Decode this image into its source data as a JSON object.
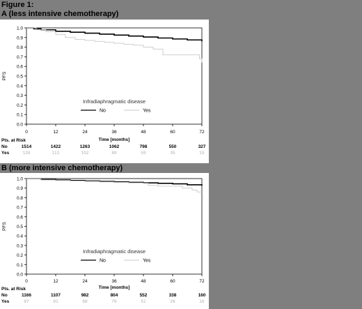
{
  "figure_title": "Figure 1:",
  "chart_data": [
    {
      "type": "line",
      "title": "A (less intensive chemotherapy)",
      "xlabel": "Time [months]",
      "ylabel": "PFS",
      "xlim": [
        0,
        72
      ],
      "ylim": [
        0.0,
        1.0
      ],
      "xticks": [
        0,
        12,
        24,
        36,
        48,
        60,
        72
      ],
      "yticks": [
        "0.0",
        "0.1",
        "0.2",
        "0.3",
        "0.4",
        "0.5",
        "0.6",
        "0.7",
        "0.8",
        "0.9",
        "1.0"
      ],
      "grid": false,
      "legend_title": "Infradiaphragmatic disease",
      "legend_position": "bottom-center",
      "series": [
        {
          "name": "No",
          "color": "#000000",
          "x": [
            0,
            3,
            6,
            12,
            18,
            24,
            30,
            36,
            42,
            48,
            54,
            60,
            66,
            72
          ],
          "y": [
            1.0,
            0.99,
            0.98,
            0.965,
            0.955,
            0.945,
            0.935,
            0.925,
            0.915,
            0.905,
            0.895,
            0.885,
            0.875,
            0.86
          ]
        },
        {
          "name": "Yes",
          "color": "#c8c8c8",
          "x": [
            0,
            4,
            8,
            12,
            16,
            20,
            24,
            28,
            32,
            36,
            40,
            44,
            48,
            52,
            56,
            60,
            64,
            68,
            70,
            71,
            72
          ],
          "y": [
            1.0,
            0.98,
            0.96,
            0.93,
            0.9,
            0.88,
            0.87,
            0.86,
            0.85,
            0.84,
            0.83,
            0.82,
            0.8,
            0.78,
            0.72,
            0.72,
            0.72,
            0.72,
            0.72,
            0.68,
            0.64
          ]
        }
      ],
      "risk_table": {
        "header": "Pts. at Risk",
        "rows": [
          {
            "label": "No",
            "color": "#000000",
            "values": [
              "1514",
              "1422",
              "1263",
              "1062",
              "798",
              "550",
              "327"
            ]
          },
          {
            "label": "Yes",
            "color": "#c8c8c8",
            "values": [
              "126",
              "113",
              "102",
              "89",
              "59",
              "35",
              "15"
            ]
          }
        ]
      }
    },
    {
      "type": "line",
      "title": "B (more intensive chemotherapy)",
      "xlabel": "Time [months]",
      "ylabel": "PFS",
      "xlim": [
        0,
        72
      ],
      "ylim": [
        0.0,
        1.0
      ],
      "xticks": [
        0,
        12,
        24,
        36,
        48,
        60,
        72
      ],
      "yticks": [
        "0.0",
        "0.1",
        "0.2",
        "0.3",
        "0.4",
        "0.5",
        "0.6",
        "0.7",
        "0.8",
        "0.9",
        "1.0"
      ],
      "grid": false,
      "legend_title": "Infradiaphragmatic disease",
      "legend_position": "bottom-center",
      "series": [
        {
          "name": "No",
          "color": "#000000",
          "x": [
            0,
            6,
            12,
            18,
            24,
            30,
            36,
            42,
            48,
            54,
            60,
            66,
            72
          ],
          "y": [
            1.0,
            0.99,
            0.985,
            0.98,
            0.975,
            0.97,
            0.965,
            0.96,
            0.955,
            0.95,
            0.945,
            0.935,
            0.925
          ]
        },
        {
          "name": "Yes",
          "color": "#c8c8c8",
          "x": [
            0,
            6,
            12,
            18,
            24,
            30,
            36,
            42,
            48,
            50,
            54,
            60,
            64,
            66,
            68,
            70,
            72
          ],
          "y": [
            1.0,
            0.985,
            0.98,
            0.975,
            0.97,
            0.965,
            0.96,
            0.955,
            0.95,
            0.93,
            0.92,
            0.92,
            0.9,
            0.9,
            0.88,
            0.86,
            0.86
          ]
        }
      ],
      "risk_table": {
        "header": "Pts. at Risk",
        "rows": [
          {
            "label": "No",
            "color": "#000000",
            "values": [
              "1166",
              "1107",
              "982",
              "804",
              "552",
              "338",
              "160"
            ]
          },
          {
            "label": "Yes",
            "color": "#c8c8c8",
            "values": [
              "97",
              "91",
              "88",
              "76",
              "51",
              "26",
              "16"
            ]
          }
        ]
      }
    }
  ]
}
